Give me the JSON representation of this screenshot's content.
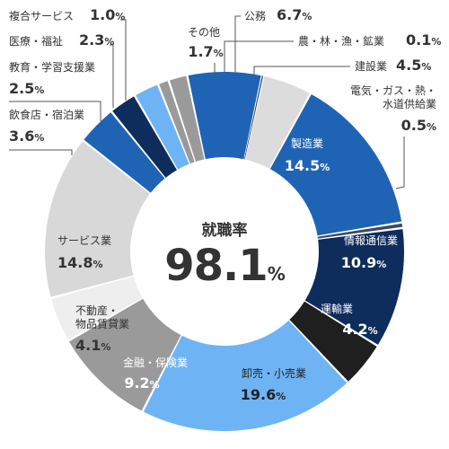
{
  "chart_data": {
    "type": "donut",
    "center": {
      "title": "就職率",
      "value": "98.1",
      "unit": "%"
    },
    "slices": [
      {
        "name": "公務",
        "value": 6.7,
        "color": "#1f64b4",
        "pct": "6.7",
        "unit": "%"
      },
      {
        "name": "農・林・漁・鉱業",
        "value": 0.1,
        "color": "#2a3e5c",
        "pct": "0.1",
        "unit": "%"
      },
      {
        "name": "建設業",
        "value": 4.5,
        "color": "#dcdcdc",
        "pct": "4.5",
        "unit": "%"
      },
      {
        "name": "製造業",
        "value": 14.5,
        "color": "#1f64b4",
        "pct": "14.5",
        "unit": "%"
      },
      {
        "name": "電気・ガス・熱・水道供給業",
        "value": 0.5,
        "color": "#3a4a60",
        "pct": "0.5",
        "unit": "%"
      },
      {
        "name": "情報通信業",
        "value": 10.9,
        "color": "#0e2c5c",
        "pct": "10.9",
        "unit": "%"
      },
      {
        "name": "運輸業",
        "value": 4.2,
        "color": "#1f1f1f",
        "pct": "4.2",
        "unit": "%"
      },
      {
        "name": "卸売・小売業",
        "value": 19.6,
        "color": "#6eb4f5",
        "pct": "19.6",
        "unit": "%"
      },
      {
        "name": "金融・保険業",
        "value": 9.2,
        "color": "#9a9a9a",
        "pct": "9.2",
        "unit": "%"
      },
      {
        "name": "不動産・物品賃貸業",
        "value": 4.1,
        "color": "#eeeeee",
        "pct": "4.1",
        "unit": "%"
      },
      {
        "name": "サービス業",
        "value": 14.8,
        "color": "#d8d8d8",
        "pct": "14.8",
        "unit": "%"
      },
      {
        "name": "飲食店・宿泊業",
        "value": 3.6,
        "color": "#1f64b4",
        "pct": "3.6",
        "unit": "%"
      },
      {
        "name": "教育・学習支援業",
        "value": 2.5,
        "color": "#0e2c5c",
        "pct": "2.5",
        "unit": "%"
      },
      {
        "name": "医療・福祉",
        "value": 2.3,
        "color": "#6eb4f5",
        "pct": "2.3",
        "unit": "%"
      },
      {
        "name": "複合サービス",
        "value": 1.0,
        "color": "#9a9a9a",
        "pct": "1.0",
        "unit": "%"
      },
      {
        "name": "その他",
        "value": 1.7,
        "color": "#9a9a9a",
        "pct": "1.7",
        "unit": "%"
      }
    ]
  }
}
